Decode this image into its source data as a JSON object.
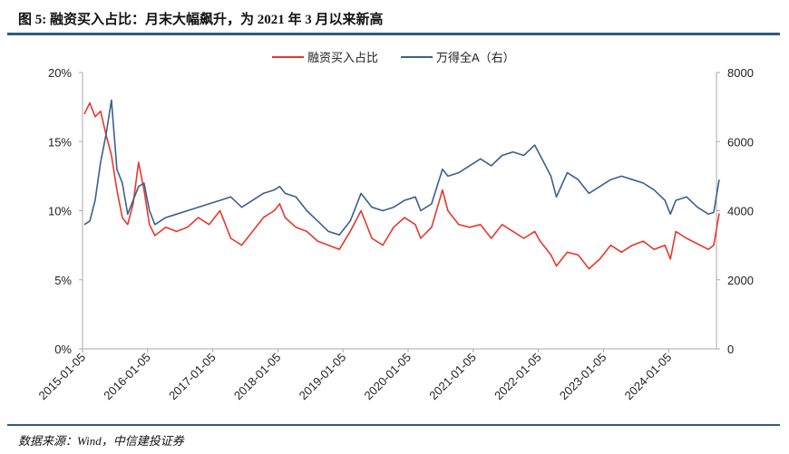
{
  "header": {
    "title": "图 5: 融资买入占比：月末大幅飙升，为 2021 年 3 月以来新高"
  },
  "footer": {
    "source": "数据来源：Wind，中信建投证券"
  },
  "chart_data": {
    "type": "line",
    "title": "图 5: 融资买入占比：月末大幅飙升，为 2021 年 3 月以来新高",
    "legend_position": "top-center",
    "grid": false,
    "x_ticks": [
      "2015-01-05",
      "2016-01-05",
      "2017-01-05",
      "2018-01-05",
      "2019-01-05",
      "2020-01-05",
      "2021-01-05",
      "2022-01-05",
      "2023-01-05",
      "2024-01-05"
    ],
    "y_left": {
      "ticks": [
        "0%",
        "5%",
        "10%",
        "15%",
        "20%"
      ],
      "range": [
        0,
        20
      ],
      "unit": "%"
    },
    "y_right": {
      "ticks": [
        "0",
        "2000",
        "4000",
        "6000",
        "8000"
      ],
      "range": [
        0,
        8000
      ]
    },
    "x": [
      "2015-01",
      "2015-02",
      "2015-03",
      "2015-04",
      "2015-05",
      "2015-06",
      "2015-07",
      "2015-08",
      "2015-09",
      "2015-10",
      "2015-11",
      "2015-12",
      "2016-01",
      "2016-02",
      "2016-04",
      "2016-06",
      "2016-08",
      "2016-10",
      "2016-12",
      "2017-02",
      "2017-04",
      "2017-06",
      "2017-08",
      "2017-10",
      "2017-12",
      "2018-01",
      "2018-02",
      "2018-04",
      "2018-06",
      "2018-08",
      "2018-10",
      "2018-12",
      "2019-02",
      "2019-04",
      "2019-06",
      "2019-08",
      "2019-10",
      "2019-12",
      "2020-02",
      "2020-03",
      "2020-05",
      "2020-07",
      "2020-08",
      "2020-10",
      "2020-12",
      "2021-02",
      "2021-04",
      "2021-06",
      "2021-08",
      "2021-10",
      "2021-12",
      "2022-01",
      "2022-03",
      "2022-04",
      "2022-06",
      "2022-08",
      "2022-10",
      "2022-12",
      "2023-02",
      "2023-04",
      "2023-06",
      "2023-08",
      "2023-10",
      "2023-12",
      "2024-01",
      "2024-02",
      "2024-04",
      "2024-06",
      "2024-08",
      "2024-09",
      "2024-10"
    ],
    "series": [
      {
        "name": "融资买入占比",
        "axis": "left",
        "color": "#e8372c",
        "values": [
          17.0,
          17.8,
          16.8,
          17.2,
          15.5,
          14.0,
          11.5,
          9.5,
          9.0,
          10.5,
          13.5,
          11.5,
          9.0,
          8.2,
          8.8,
          8.5,
          8.8,
          9.5,
          9.0,
          10.0,
          8.0,
          7.5,
          8.5,
          9.5,
          10.0,
          10.5,
          9.5,
          8.8,
          8.5,
          7.8,
          7.5,
          7.2,
          8.5,
          10.0,
          8.0,
          7.5,
          8.8,
          9.5,
          9.0,
          8.0,
          8.8,
          11.5,
          10.0,
          9.0,
          8.8,
          9.0,
          8.0,
          9.0,
          8.5,
          8.0,
          8.5,
          7.8,
          6.8,
          6.0,
          7.0,
          6.8,
          5.8,
          6.5,
          7.5,
          7.0,
          7.5,
          7.8,
          7.2,
          7.5,
          6.5,
          8.5,
          8.0,
          7.6,
          7.2,
          7.5,
          9.8
        ]
      },
      {
        "name": "万得全A（右）",
        "axis": "right",
        "color": "#3b5f8f",
        "values": [
          3600,
          3700,
          4300,
          5400,
          6200,
          7200,
          5200,
          4800,
          3900,
          4300,
          4700,
          4800,
          4000,
          3600,
          3800,
          3900,
          4000,
          4100,
          4200,
          4300,
          4400,
          4100,
          4300,
          4500,
          4600,
          4700,
          4500,
          4400,
          4000,
          3700,
          3400,
          3300,
          3700,
          4500,
          4100,
          4000,
          4100,
          4300,
          4400,
          4000,
          4200,
          5200,
          5000,
          5100,
          5300,
          5500,
          5300,
          5600,
          5700,
          5600,
          5900,
          5600,
          5000,
          4400,
          5100,
          4900,
          4500,
          4700,
          4900,
          5000,
          4900,
          4800,
          4600,
          4300,
          3900,
          4300,
          4400,
          4100,
          3900,
          3950,
          4900
        ]
      }
    ]
  }
}
